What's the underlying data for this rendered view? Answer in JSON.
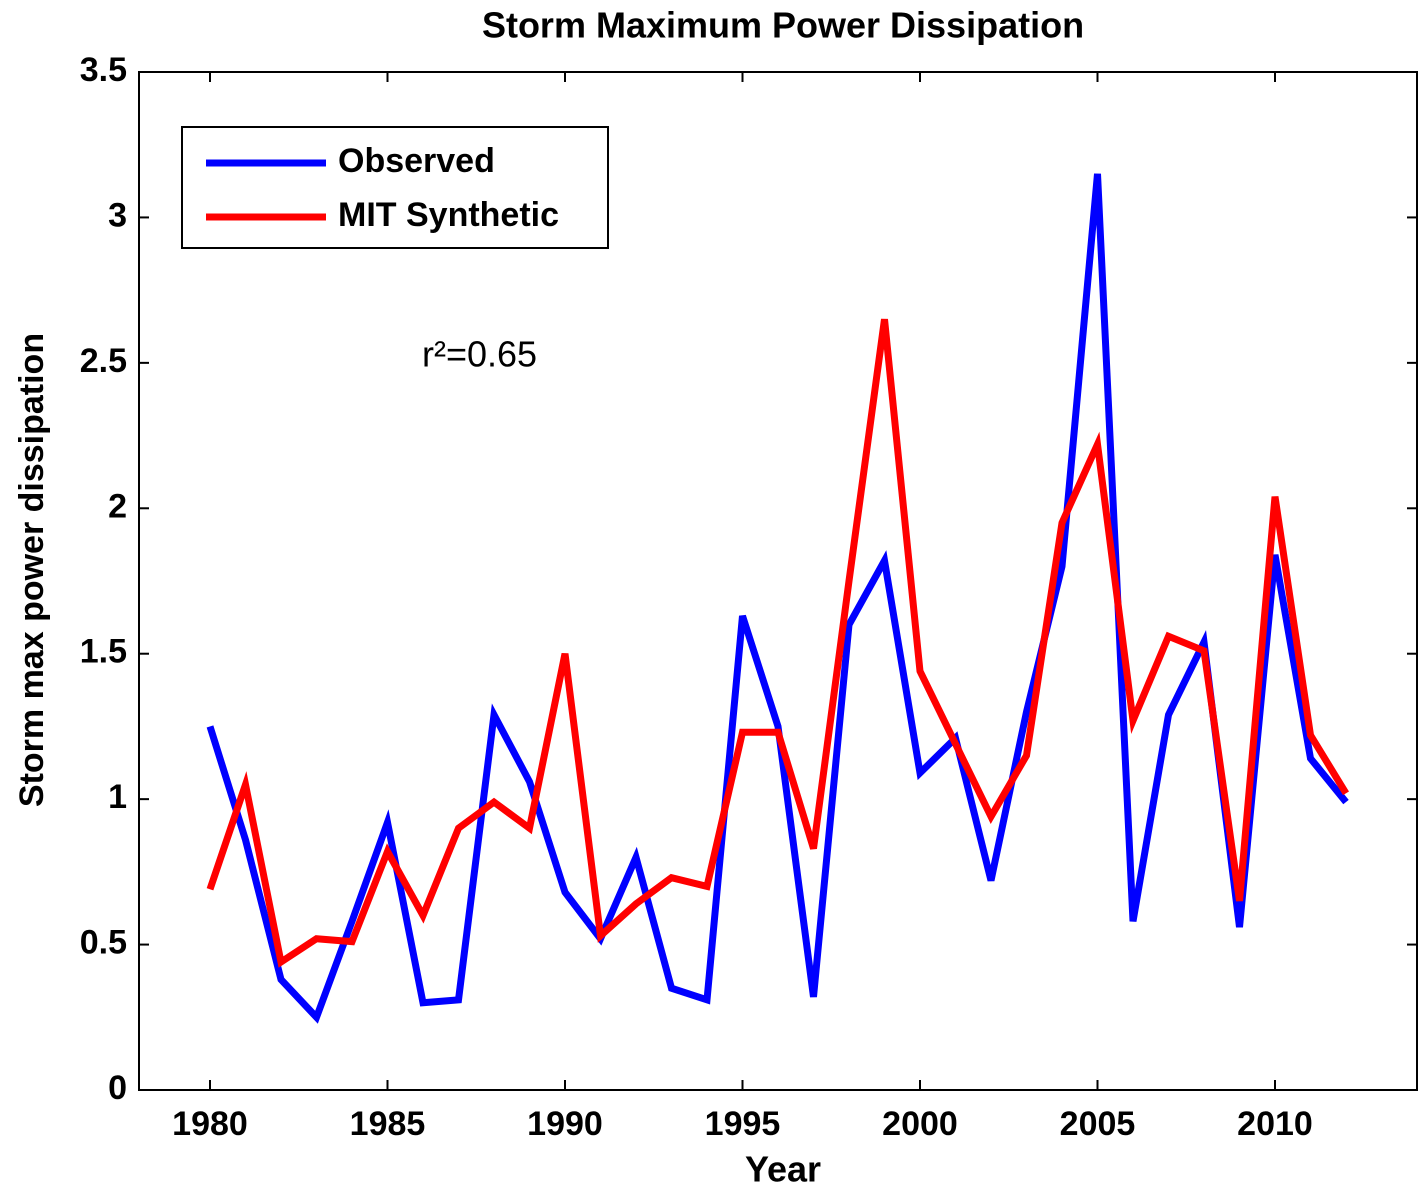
{
  "chart_data": {
    "type": "line",
    "title": "Storm Maximum Power Dissipation",
    "x_label": "Year",
    "y_label": "Storm max power dissipation",
    "annotation": "r²=0.65",
    "x": [
      1980,
      1981,
      1982,
      1983,
      1984,
      1985,
      1986,
      1987,
      1988,
      1989,
      1990,
      1991,
      1992,
      1993,
      1994,
      1995,
      1996,
      1997,
      1998,
      1999,
      2000,
      2001,
      2002,
      2003,
      2004,
      2005,
      2006,
      2007,
      2008,
      2009,
      2010,
      2011,
      2012
    ],
    "series": [
      {
        "name": "Observed",
        "color": "#0000ff",
        "values": [
          1.25,
          0.86,
          0.38,
          0.25,
          0.58,
          0.92,
          0.3,
          0.31,
          1.29,
          1.06,
          0.68,
          0.52,
          0.8,
          0.35,
          0.31,
          1.63,
          1.25,
          0.32,
          1.6,
          1.82,
          1.09,
          1.21,
          0.72,
          1.3,
          1.8,
          3.15,
          0.58,
          1.29,
          1.54,
          0.56,
          1.84,
          1.14,
          0.99
        ]
      },
      {
        "name": "MIT Synthetic",
        "color": "#ff0000",
        "values": [
          0.69,
          1.05,
          0.44,
          0.52,
          0.51,
          0.82,
          0.6,
          0.9,
          0.99,
          0.9,
          1.5,
          0.53,
          0.64,
          0.73,
          0.7,
          1.23,
          1.23,
          0.83,
          1.75,
          2.65,
          1.44,
          1.19,
          0.94,
          1.15,
          1.95,
          2.22,
          1.27,
          1.56,
          1.51,
          0.65,
          2.04,
          1.22,
          1.02
        ]
      }
    ],
    "xlim": [
      1978,
      2014
    ],
    "xticks": [
      1980,
      1985,
      1990,
      1995,
      2000,
      2005,
      2010
    ],
    "ylim": [
      0,
      3.5
    ],
    "yticks": [
      0,
      0.5,
      1,
      1.5,
      2,
      2.5,
      3,
      3.5
    ],
    "legend": "upper left"
  }
}
